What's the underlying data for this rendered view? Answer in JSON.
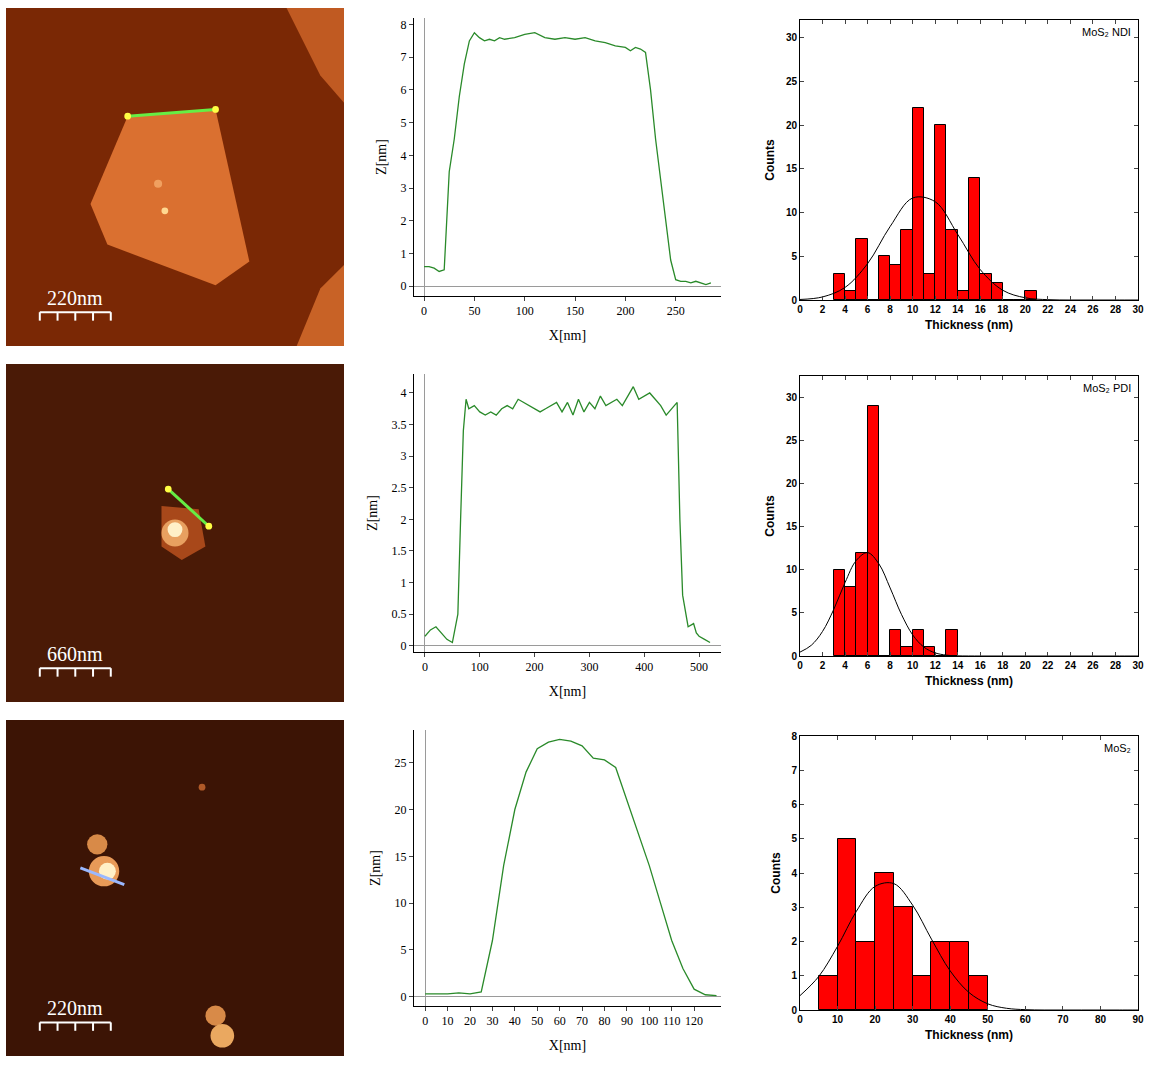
{
  "chart_data": [
    {
      "type": "image",
      "scale_bar": "220nm"
    },
    {
      "type": "line",
      "xlabel": "X[nm]",
      "ylabel": "Z[nm]",
      "color": "#2a8a2a",
      "x": [
        0,
        5,
        10,
        15,
        20,
        25,
        30,
        35,
        40,
        45,
        50,
        55,
        60,
        65,
        70,
        75,
        80,
        90,
        100,
        110,
        120,
        130,
        140,
        150,
        160,
        170,
        180,
        190,
        200,
        205,
        210,
        215,
        220,
        225,
        230,
        235,
        240,
        245,
        250,
        255,
        260,
        265,
        270,
        275,
        280,
        285
      ],
      "values": [
        0.6,
        0.6,
        0.55,
        0.45,
        0.5,
        3.5,
        4.5,
        5.8,
        6.8,
        7.5,
        7.75,
        7.6,
        7.5,
        7.55,
        7.5,
        7.6,
        7.55,
        7.6,
        7.7,
        7.75,
        7.6,
        7.55,
        7.6,
        7.55,
        7.6,
        7.5,
        7.45,
        7.35,
        7.3,
        7.2,
        7.3,
        7.25,
        7.15,
        6.0,
        4.5,
        3.3,
        2.0,
        0.8,
        0.2,
        0.15,
        0.15,
        0.1,
        0.15,
        0.1,
        0.05,
        0.1
      ],
      "xlim": [
        -10,
        295
      ],
      "ylim": [
        -0.3,
        8.2
      ],
      "xticks": [
        0,
        50,
        100,
        150,
        200,
        250
      ],
      "yticks": [
        0,
        1,
        2,
        3,
        4,
        5,
        6,
        7,
        8
      ]
    },
    {
      "type": "histogram",
      "annotation": "MoS₂ NDI",
      "xlabel": "Thickness (nm)",
      "ylabel": "Counts",
      "color": "#ff0000",
      "bins": [
        3,
        4,
        5,
        6,
        7,
        8,
        9,
        10,
        11,
        12,
        13,
        14,
        15,
        16,
        17,
        18,
        19,
        20,
        21
      ],
      "values": [
        3,
        1,
        7,
        0,
        5,
        4,
        8,
        22,
        3,
        20,
        8,
        1,
        14,
        3,
        2,
        0,
        0,
        1
      ],
      "fit": {
        "color": "#000000",
        "x": [
          0,
          2,
          4,
          6,
          8,
          10,
          12,
          14,
          16,
          18,
          20,
          22,
          24,
          26,
          28,
          30
        ],
        "values": [
          0.06,
          0.35,
          1.44,
          4.16,
          8.4,
          11.66,
          11.23,
          7.5,
          3.47,
          1.11,
          0.25,
          0.04,
          0,
          0,
          0,
          0
        ]
      },
      "xlim": [
        0,
        30
      ],
      "ylim": [
        0,
        32
      ],
      "xticks": [
        0,
        2,
        4,
        6,
        8,
        10,
        12,
        14,
        16,
        18,
        20,
        22,
        24,
        26,
        28,
        30
      ],
      "yticks": [
        0,
        5,
        10,
        15,
        20,
        25,
        30
      ]
    },
    {
      "type": "image",
      "scale_bar": "660nm"
    },
    {
      "type": "line",
      "xlabel": "X[nm]",
      "ylabel": "Z[nm]",
      "color": "#2a8a2a",
      "x": [
        0,
        10,
        20,
        30,
        40,
        50,
        60,
        65,
        70,
        75,
        80,
        90,
        100,
        110,
        120,
        130,
        140,
        150,
        160,
        170,
        180,
        190,
        200,
        210,
        220,
        230,
        240,
        250,
        260,
        270,
        280,
        290,
        300,
        310,
        320,
        330,
        340,
        350,
        360,
        370,
        380,
        390,
        400,
        410,
        420,
        430,
        440,
        450,
        460,
        465,
        470,
        480,
        490,
        495,
        500,
        510,
        520
      ],
      "values": [
        0.15,
        0.25,
        0.3,
        0.2,
        0.1,
        0.05,
        0.5,
        2.0,
        3.4,
        3.9,
        3.75,
        3.8,
        3.7,
        3.65,
        3.7,
        3.65,
        3.75,
        3.8,
        3.75,
        3.9,
        3.85,
        3.8,
        3.75,
        3.7,
        3.75,
        3.8,
        3.85,
        3.7,
        3.85,
        3.65,
        3.9,
        3.7,
        3.85,
        3.75,
        3.95,
        3.8,
        3.85,
        3.9,
        3.8,
        3.95,
        4.1,
        3.9,
        3.95,
        4.0,
        3.9,
        3.8,
        3.65,
        3.75,
        3.85,
        2.0,
        0.8,
        0.3,
        0.35,
        0.2,
        0.15,
        0.1,
        0.05
      ],
      "xlim": [
        -20,
        540
      ],
      "ylim": [
        -0.1,
        4.3
      ],
      "xticks": [
        0,
        100,
        200,
        300,
        400,
        500
      ],
      "yticks": [
        0,
        0.5,
        1,
        1.5,
        2,
        2.5,
        3,
        3.5,
        4
      ]
    },
    {
      "type": "histogram",
      "annotation": "MoS₂ PDI",
      "xlabel": "Thickness (nm)",
      "ylabel": "Counts",
      "color": "#ff0000",
      "bins": [
        3,
        4,
        5,
        6,
        7,
        8,
        9,
        10,
        11,
        12,
        13,
        14
      ],
      "values": [
        10,
        8,
        12,
        29,
        0,
        3,
        1,
        3,
        1,
        0,
        3
      ],
      "fit": {
        "color": "#000000",
        "x": [
          0,
          1,
          2,
          3,
          4,
          5,
          6,
          7,
          8,
          9,
          10,
          11,
          12,
          13,
          14,
          16,
          18,
          20,
          22,
          24,
          26,
          28,
          30
        ],
        "values": [
          0.45,
          1.24,
          2.85,
          5.42,
          8.53,
          11.1,
          12.0,
          10.7,
          7.9,
          4.84,
          2.45,
          1.03,
          0.36,
          0.1,
          0.02,
          0,
          0,
          0,
          0,
          0,
          0,
          0,
          0
        ]
      },
      "xlim": [
        0,
        30
      ],
      "ylim": [
        0,
        32.5
      ],
      "xticks": [
        0,
        2,
        4,
        6,
        8,
        10,
        12,
        14,
        16,
        18,
        20,
        22,
        24,
        26,
        28,
        30
      ],
      "yticks": [
        0,
        5,
        10,
        15,
        20,
        25,
        30
      ]
    },
    {
      "type": "image",
      "scale_bar": "220nm"
    },
    {
      "type": "line",
      "xlabel": "X[nm]",
      "ylabel": "Z[nm]",
      "color": "#2a8a2a",
      "x": [
        0,
        10,
        15,
        20,
        25,
        30,
        35,
        40,
        45,
        50,
        55,
        60,
        65,
        70,
        75,
        80,
        85,
        90,
        95,
        100,
        105,
        110,
        115,
        120,
        125,
        130
      ],
      "values": [
        0.3,
        0.3,
        0.4,
        0.3,
        0.5,
        6,
        14,
        20,
        24,
        26.5,
        27.2,
        27.5,
        27.3,
        26.8,
        25.5,
        25.3,
        24.5,
        21,
        17.5,
        14,
        10,
        6,
        3,
        0.8,
        0.2,
        0.1
      ],
      "xlim": [
        -5,
        132
      ],
      "ylim": [
        -1,
        28.5
      ],
      "xticks": [
        0,
        10,
        20,
        30,
        40,
        50,
        60,
        70,
        80,
        90,
        100,
        110,
        120
      ],
      "yticks": [
        0,
        5,
        10,
        15,
        20,
        25
      ]
    },
    {
      "type": "histogram",
      "annotation": "MoS₂",
      "xlabel": "Thickness (nm)",
      "ylabel": "Counts",
      "color": "#ff0000",
      "bins": [
        5,
        10,
        15,
        20,
        25,
        30,
        35,
        40,
        45,
        50
      ],
      "values": [
        1,
        5,
        2,
        4,
        3,
        1,
        2,
        2,
        1
      ],
      "fit": {
        "color": "#000000",
        "x": [
          0,
          5,
          10,
          15,
          20,
          25,
          30,
          35,
          40,
          45,
          50,
          55,
          60,
          65,
          70,
          75,
          80,
          85,
          90
        ],
        "values": [
          0.42,
          0.98,
          1.86,
          2.88,
          3.61,
          3.69,
          3.06,
          2.07,
          1.14,
          0.51,
          0.18,
          0.05,
          0.01,
          0,
          0,
          0,
          0,
          0,
          0
        ]
      },
      "xlim": [
        0,
        90
      ],
      "ylim": [
        0,
        8
      ],
      "xticks": [
        0,
        10,
        20,
        30,
        40,
        50,
        60,
        70,
        80,
        90
      ],
      "yticks": [
        0,
        1,
        2,
        3,
        4,
        5,
        6,
        7,
        8
      ]
    }
  ]
}
